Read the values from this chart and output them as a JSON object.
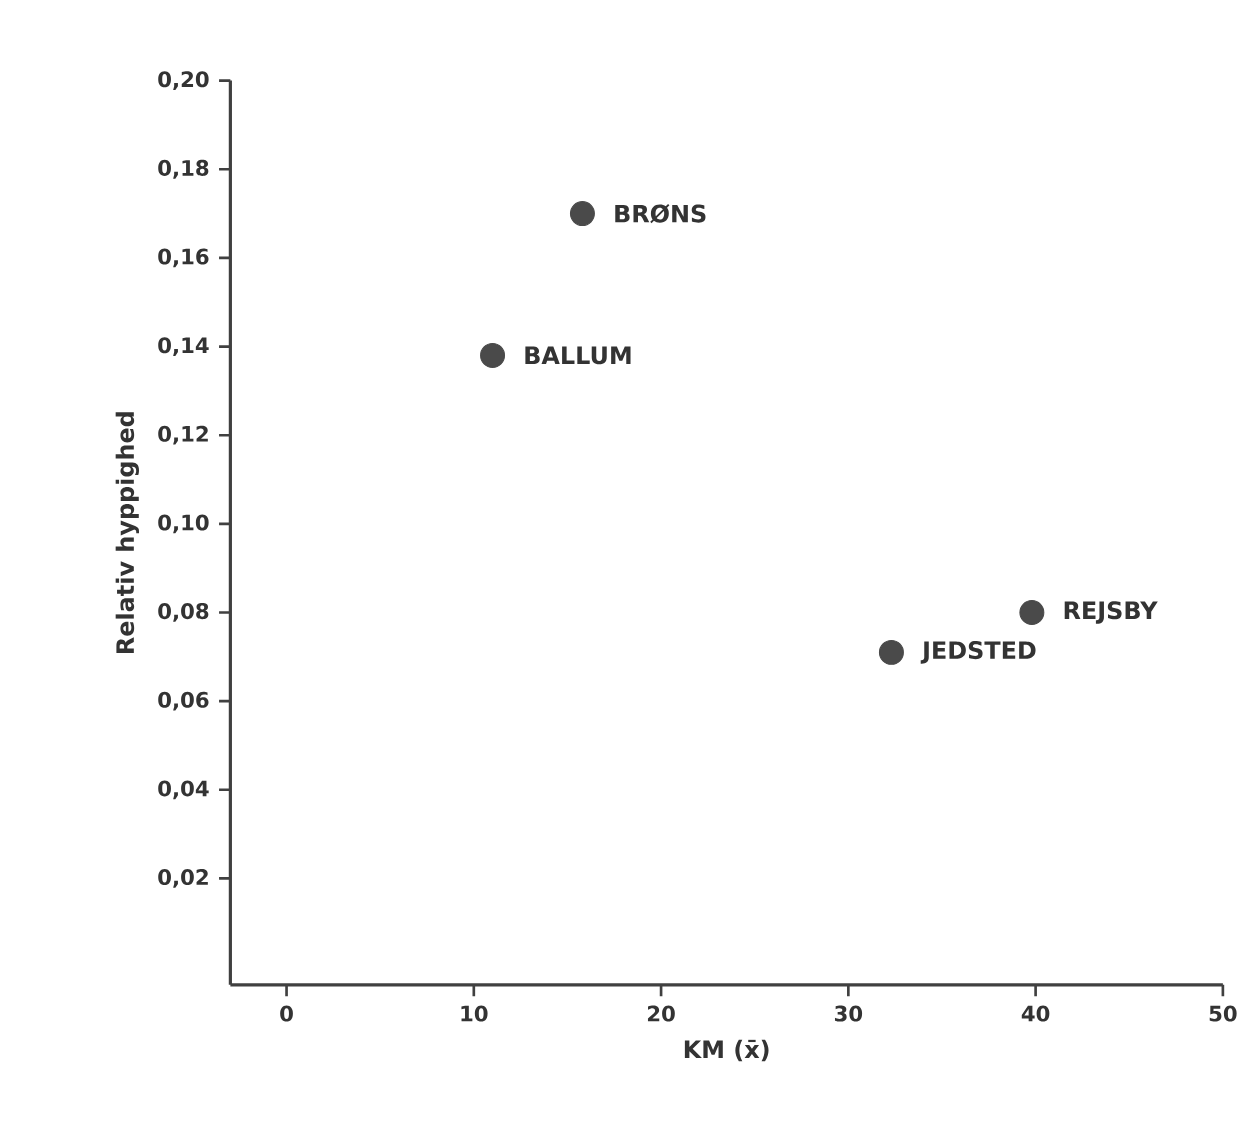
{
  "chart_data": {
    "type": "scatter",
    "xlabel": "KM  (x̄)",
    "ylabel": "Relativ  hyppighed",
    "marker": "circle",
    "xlim": [
      -3,
      50
    ],
    "ylim": [
      -0.004,
      0.2
    ],
    "xticks": [
      0,
      10,
      20,
      30,
      40,
      50
    ],
    "yticks": [
      {
        "value": 0.02,
        "label": "0,02"
      },
      {
        "value": 0.04,
        "label": "0,04"
      },
      {
        "value": 0.06,
        "label": "0,06"
      },
      {
        "value": 0.08,
        "label": "0,08"
      },
      {
        "value": 0.1,
        "label": "0,10"
      },
      {
        "value": 0.12,
        "label": "0,12"
      },
      {
        "value": 0.14,
        "label": "0,14"
      },
      {
        "value": 0.16,
        "label": "0,16"
      },
      {
        "value": 0.18,
        "label": "0,18"
      },
      {
        "value": 0.2,
        "label": "0,20"
      }
    ],
    "series": [
      {
        "name": "BRØNS",
        "color": "#4a4a4a",
        "x": [
          15.8
        ],
        "values": [
          0.17
        ]
      },
      {
        "name": "BALLUM",
        "color": "#4a4a4a",
        "x": [
          11.0
        ],
        "values": [
          0.138
        ]
      },
      {
        "name": "REJSBY",
        "color": "#4a4a4a",
        "x": [
          39.8
        ],
        "values": [
          0.08
        ]
      },
      {
        "name": "JEDSTED",
        "color": "#4a4a4a",
        "x": [
          32.3
        ],
        "values": [
          0.071
        ]
      }
    ]
  }
}
